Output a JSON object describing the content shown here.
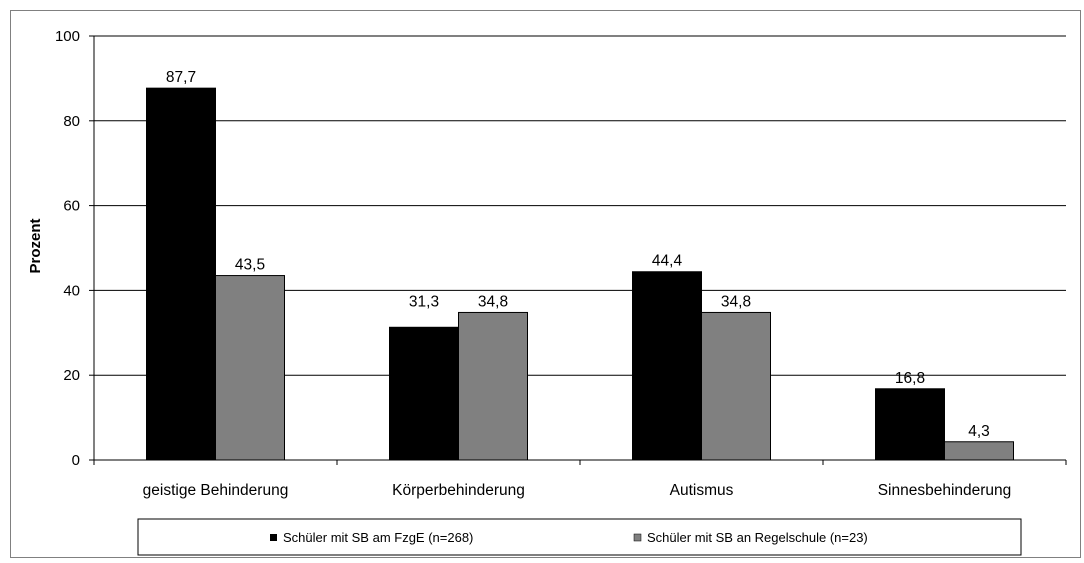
{
  "chart_data": {
    "type": "bar",
    "ylabel": "Prozent",
    "xlabel": "",
    "ylim": [
      0,
      100
    ],
    "yticks": [
      0,
      20,
      40,
      60,
      80,
      100
    ],
    "grid": true,
    "legend_position": "bottom",
    "categories": [
      "geistige Behinderung",
      "Körperbehinderung",
      "Autismus",
      "Sinnesbehinderung"
    ],
    "series": [
      {
        "name": "Schüler mit SB am FzgE (n=268)",
        "color": "#000000",
        "values": [
          87.7,
          31.3,
          44.4,
          16.8
        ],
        "labels": [
          "87,7",
          "31,3",
          "44,4",
          "16,8"
        ]
      },
      {
        "name": "Schüler mit SB an Regelschule (n=23)",
        "color": "#808080",
        "values": [
          43.5,
          34.8,
          34.8,
          4.3
        ],
        "labels": [
          "43,5",
          "34,8",
          "34,8",
          "4,3"
        ]
      }
    ]
  }
}
